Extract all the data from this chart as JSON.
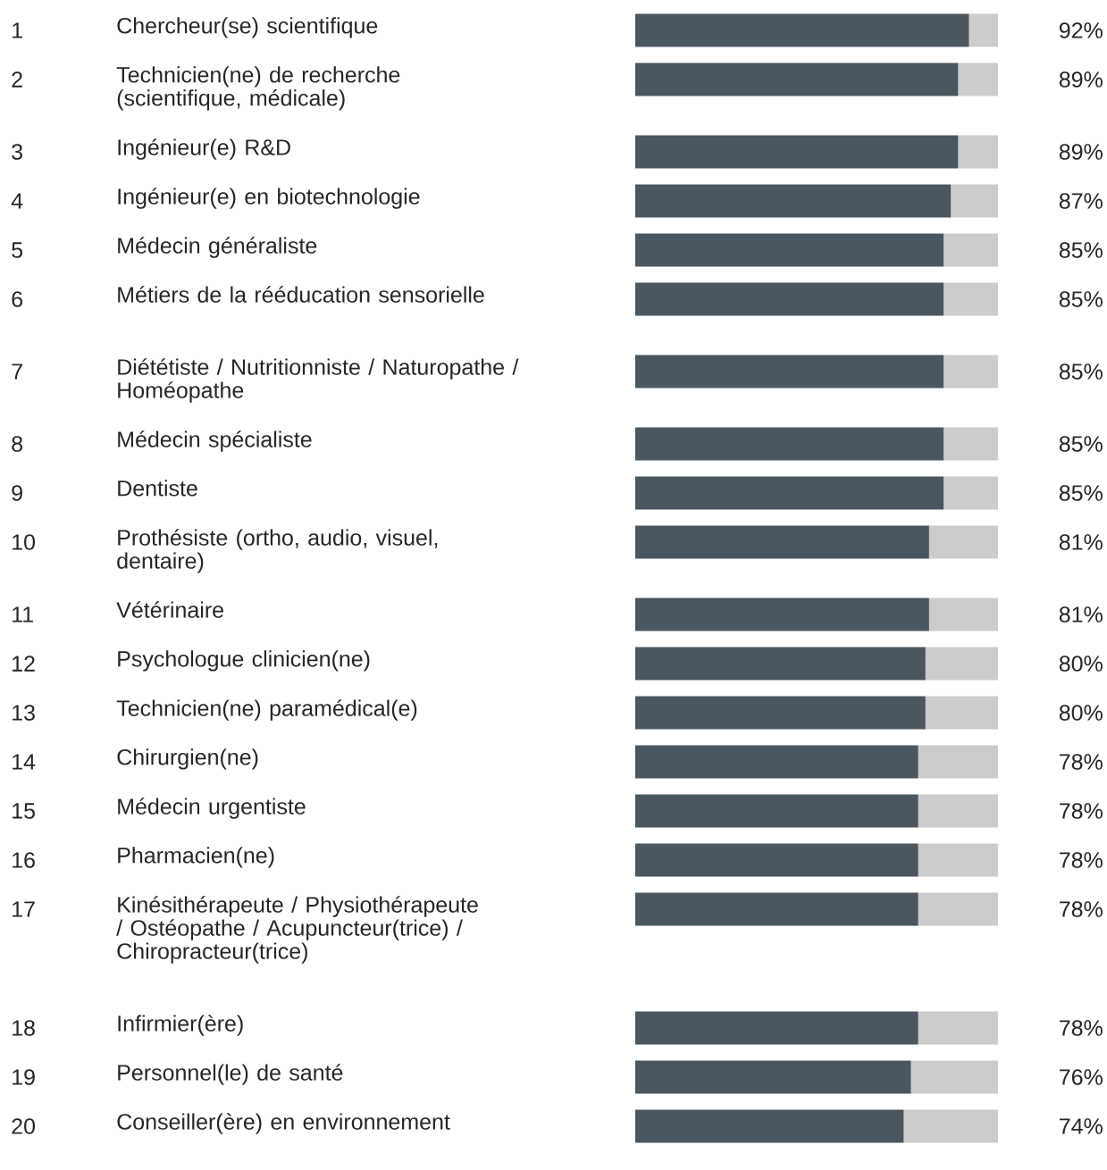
{
  "chart_data": {
    "type": "bar",
    "orientation": "horizontal",
    "stacked": true,
    "categories": [
      "Chercheur(se) scientifique",
      "Technicien(ne) de recherche (scientifique, médicale)",
      "Ingénieur(e) R&D",
      "Ingénieur(e) en biotechnologie",
      "Médecin généraliste",
      "Métiers de la rééducation sensorielle",
      "Diététiste / Nutritionniste / Naturopathe / Homéopathe",
      "Médecin spécialiste",
      "Dentiste",
      "Prothésiste (ortho, audio, visuel, dentaire)",
      "Vétérinaire",
      "Psychologue clinicien(ne)",
      "Technicien(ne) paramédical(e)",
      "Chirurgien(ne)",
      "Médecin urgentiste",
      "Pharmacien(ne)",
      "Kinésithérapeute / Physiothérapeute / Ostéopathe / Acupuncteur(trice) / Chiropracteur(trice)",
      "Infirmier(ère)",
      "Personnel(le) de santé",
      "Conseiller(ère) en environnement"
    ],
    "xlim": [
      0,
      100
    ],
    "series": [
      {
        "color": "#4a5761",
        "values": [
          92,
          89,
          89,
          87,
          85,
          85,
          85,
          85,
          85,
          81,
          81,
          80,
          80,
          78,
          78,
          78,
          78,
          78,
          76,
          74
        ],
        "value_labels": [
          "92%",
          "89%",
          "89%",
          "87%",
          "85%",
          "85%",
          "85%",
          "85%",
          "85%",
          "81%",
          "81%",
          "80%",
          "80%",
          "78%",
          "78%",
          "78%",
          "78%",
          "78%",
          "76%",
          "74%"
        ]
      },
      {
        "color": "#cccccc",
        "values": [
          8,
          11,
          11,
          13,
          15,
          15,
          15,
          15,
          15,
          19,
          19,
          20,
          20,
          22,
          22,
          22,
          22,
          22,
          24,
          26
        ]
      }
    ],
    "annotations": [
      "1",
      "2",
      "3",
      "4",
      "5",
      "6",
      "7",
      "8",
      "9",
      "10",
      "11",
      "12",
      "13",
      "14",
      "15",
      "16",
      "17",
      "18",
      "19",
      "20"
    ]
  }
}
